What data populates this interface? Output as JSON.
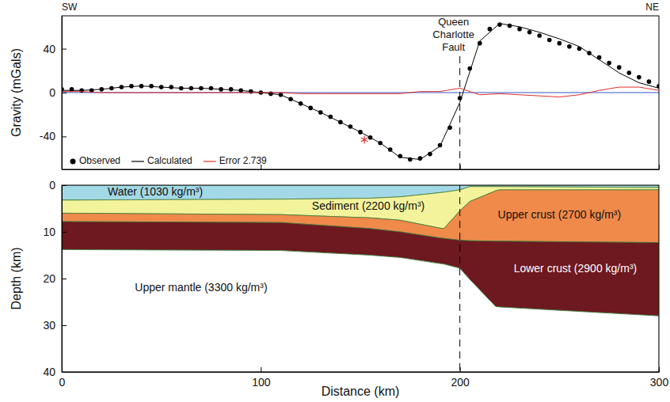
{
  "chart_data": [
    {
      "type": "line",
      "ylabel": "Gravity (mGals)",
      "direction_labels": [
        "SW",
        "NE"
      ],
      "xlim": [
        0,
        300
      ],
      "xticks": [
        0,
        100,
        200,
        300
      ],
      "ylim": [
        -70,
        70
      ],
      "yticks": [
        -40,
        0,
        40
      ],
      "tick_labels": "y",
      "legend": "lower left",
      "zero_line": 0,
      "annotations": [
        {
          "text": "Queen Charlotte Fault",
          "x": 200
        }
      ],
      "series": [
        {
          "name": "Observed",
          "type": "scatter",
          "marker": "circle",
          "color": "#000000",
          "x": [
            0,
            5,
            10,
            15,
            20,
            25,
            30,
            35,
            40,
            45,
            50,
            55,
            60,
            65,
            70,
            75,
            80,
            85,
            90,
            95,
            100,
            105,
            110,
            115,
            120,
            125,
            130,
            135,
            140,
            145,
            150,
            155,
            160,
            165,
            170,
            175,
            180,
            185,
            190,
            195,
            200,
            205,
            210,
            215,
            220,
            225,
            230,
            235,
            240,
            245,
            250,
            255,
            260,
            265,
            270,
            275,
            280,
            285,
            290,
            295,
            300
          ],
          "values": [
            3,
            3,
            2,
            2,
            3,
            4,
            5,
            6,
            6,
            6,
            5,
            5,
            4,
            4,
            4,
            4,
            3,
            3,
            2,
            1,
            0,
            -1,
            -2,
            -6,
            -10,
            -14,
            -18,
            -22,
            -27,
            -31,
            -36,
            -41,
            -46,
            -52,
            -58,
            -61,
            -60,
            -56,
            -48,
            -32,
            -5,
            22,
            45,
            58,
            62,
            61,
            58,
            55,
            52,
            48,
            45,
            42,
            40,
            36,
            32,
            27,
            23,
            18,
            14,
            10,
            6
          ]
        },
        {
          "name": "Calculated",
          "type": "line",
          "line_style": "solid",
          "color": "#000000",
          "x": [
            0,
            10,
            20,
            30,
            40,
            50,
            60,
            70,
            80,
            90,
            100,
            110,
            120,
            130,
            140,
            150,
            160,
            170,
            180,
            190,
            200,
            210,
            220,
            230,
            240,
            250,
            260,
            270,
            280,
            290,
            300
          ],
          "values": [
            2,
            2,
            3,
            5,
            6,
            5,
            4,
            4,
            3,
            2,
            0,
            -2,
            -10,
            -18,
            -27,
            -36,
            -46,
            -59,
            -61,
            -49,
            -9,
            47,
            63,
            60,
            55,
            49,
            42,
            30,
            18,
            9,
            4
          ]
        },
        {
          "name": "Error 2.739",
          "type": "line",
          "line_style": "solid",
          "color": "#e0302a",
          "x": [
            0,
            10,
            20,
            30,
            40,
            50,
            60,
            70,
            80,
            90,
            100,
            110,
            120,
            130,
            140,
            150,
            160,
            170,
            180,
            190,
            200,
            210,
            220,
            230,
            240,
            250,
            260,
            270,
            280,
            290,
            300
          ],
          "values": [
            1,
            1,
            0,
            0,
            0,
            0,
            0,
            0,
            0,
            0,
            0,
            0,
            -1,
            -1,
            -1,
            -1,
            -1,
            -1,
            1,
            1,
            4,
            -2,
            -1,
            -2,
            -3,
            -4,
            -2,
            2,
            5,
            5,
            2
          ]
        },
        {
          "type": "scatter",
          "marker": "asterisk",
          "color": "#e0302a",
          "x": [
            152
          ],
          "values": [
            -43
          ]
        }
      ]
    },
    {
      "type": "area",
      "xlabel": "Distance (km)",
      "ylabel": "Depth (km)",
      "xlim": [
        0,
        300
      ],
      "xticks": [
        0,
        100,
        200,
        300
      ],
      "ylim": [
        0,
        40
      ],
      "yticks": [
        0,
        10,
        20,
        30,
        40
      ],
      "fault_x": 200,
      "layers": [
        {
          "name": "Water (1030 kg/m³)",
          "color": "#a3d8e6",
          "label_at": [
            47,
            1.6
          ],
          "x": [
            0,
            110,
            155,
            170,
            190,
            192,
            200,
            205,
            218,
            220,
            300
          ],
          "top": [
            0,
            0,
            0,
            0,
            0,
            0,
            0,
            0,
            0,
            0,
            0
          ],
          "bottom": [
            3.2,
            3.0,
            2.8,
            2.5,
            1.6,
            1.5,
            1.0,
            0.3,
            0.3,
            0.3,
            0.5
          ]
        },
        {
          "name": "Sediment (2200 kg/m³)",
          "color": "#f3f39b",
          "label_at": [
            154,
            4.6
          ],
          "x": [
            0,
            110,
            155,
            170,
            190,
            192,
            200,
            205,
            218,
            220,
            300
          ],
          "top": [
            3.2,
            3.0,
            2.8,
            2.5,
            1.6,
            1.5,
            1.0,
            0.3,
            0.3,
            0.3,
            0.5
          ],
          "bottom": [
            6.0,
            6.3,
            7.0,
            7.5,
            9.2,
            9.3,
            5.5,
            3.5,
            1.2,
            1.0,
            1.0
          ]
        },
        {
          "name": "Upper crust (2700 kg/m³)",
          "color": "#ef8a4a",
          "label_at": [
            250,
            6.5
          ],
          "x": [
            0,
            110,
            155,
            170,
            190,
            192,
            200,
            205,
            218,
            220,
            300
          ],
          "top": [
            6.0,
            6.3,
            7.0,
            7.5,
            9.2,
            9.3,
            5.5,
            3.5,
            1.2,
            1.0,
            1.0
          ],
          "bottom": [
            7.8,
            8.0,
            9.3,
            10.0,
            11.3,
            11.4,
            11.8,
            11.9,
            12.0,
            12.0,
            12.3
          ]
        },
        {
          "name": "Lower crust (2900 kg/m³)",
          "color": "#6e1820",
          "label_at": [
            258,
            18
          ],
          "x": [
            0,
            110,
            155,
            170,
            190,
            192,
            200,
            205,
            218,
            220,
            300
          ],
          "top": [
            7.8,
            8.0,
            9.3,
            10.0,
            11.3,
            11.4,
            11.8,
            11.9,
            12.0,
            12.0,
            12.3
          ],
          "bottom": [
            13.8,
            14.0,
            15.0,
            15.5,
            16.8,
            16.9,
            17.8,
            20.2,
            26.0,
            26.1,
            28.0
          ]
        },
        {
          "name": "Upper mantle (3300 kg/m³)",
          "color": "#ffffff",
          "label_at": [
            70,
            22
          ],
          "x": [
            0,
            110,
            155,
            170,
            190,
            192,
            200,
            205,
            218,
            220,
            300
          ],
          "top": [
            13.8,
            14.0,
            15.0,
            15.5,
            16.8,
            16.9,
            17.8,
            20.2,
            26.0,
            26.1,
            28.0
          ],
          "bottom": [
            40,
            40,
            40,
            40,
            40,
            40,
            40,
            40,
            40,
            40,
            40
          ]
        }
      ]
    }
  ]
}
